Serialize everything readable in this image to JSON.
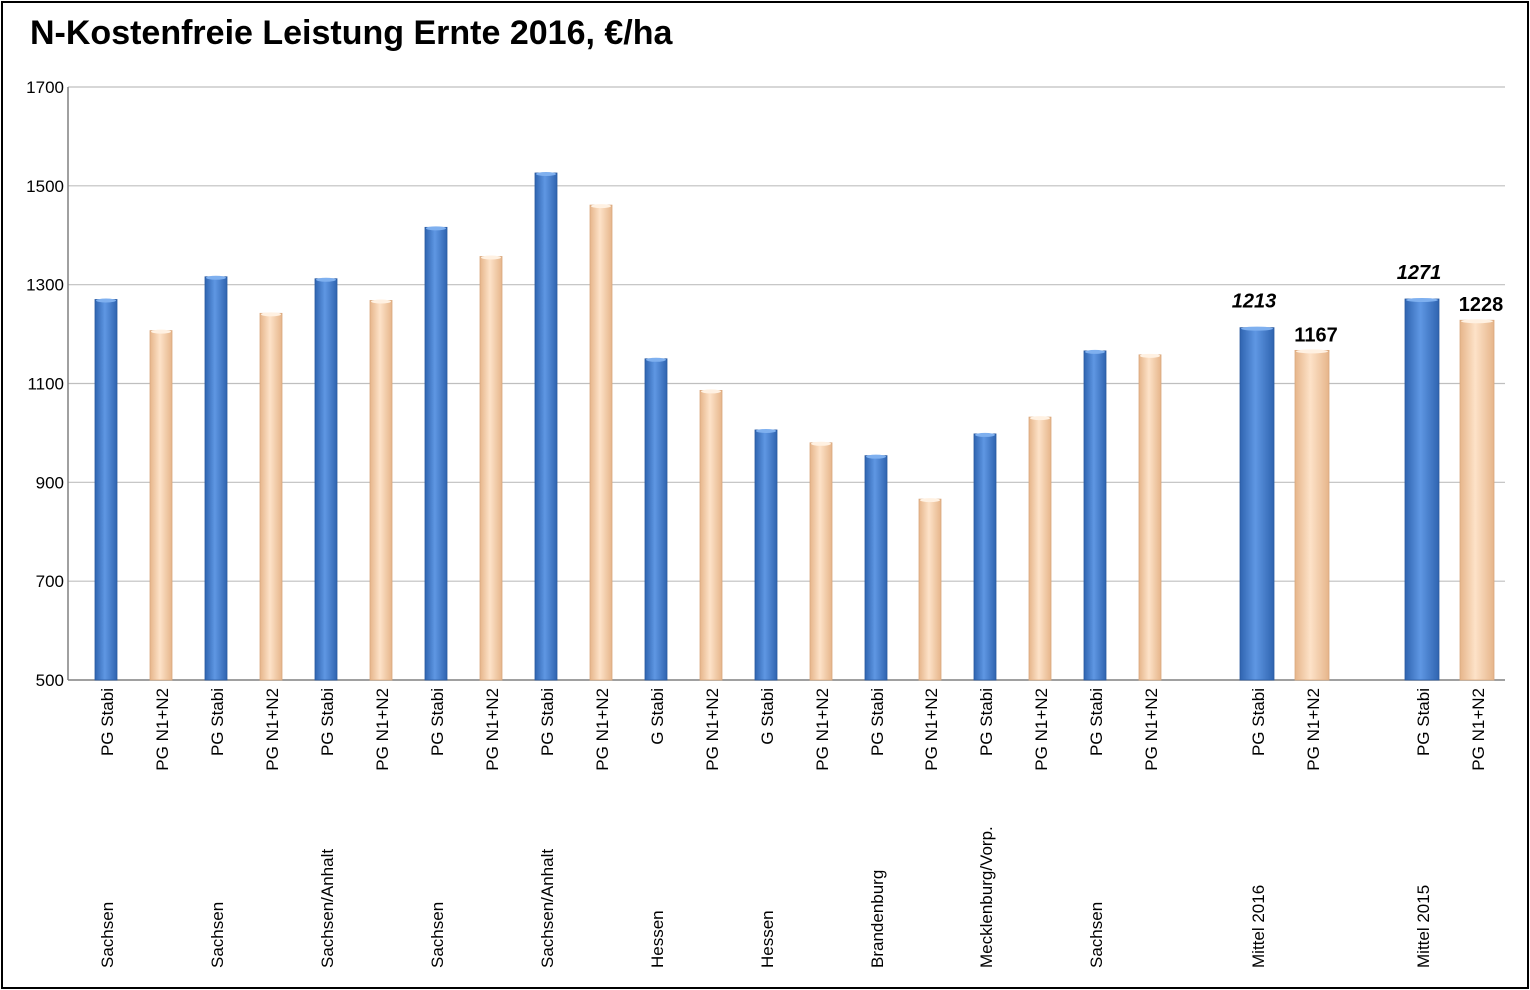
{
  "title": "N-Kostenfreie Leistung Ernte 2016, €/ha",
  "colors": {
    "stabi": "#4a84d6",
    "n1n2": "#f7d1ae",
    "grid": "#bfbfbf"
  },
  "chart_data": {
    "type": "bar",
    "title": "N-Kostenfreie Leistung Ernte 2016, €/ha",
    "ylim": [
      500,
      1700
    ],
    "yticks": [
      500,
      700,
      900,
      1100,
      1300,
      1500,
      1700
    ],
    "grid": true,
    "bars": [
      {
        "label": "PG Stabi",
        "group": "Sachsen",
        "value": 1270,
        "kind": "stabi"
      },
      {
        "label": "PG N1+N2",
        "group": "",
        "value": 1207,
        "kind": "n1n2"
      },
      {
        "label": "PG Stabi",
        "group": "Sachsen",
        "value": 1316,
        "kind": "stabi"
      },
      {
        "label": "PG N1+N2",
        "group": "",
        "value": 1242,
        "kind": "n1n2"
      },
      {
        "label": "PG Stabi",
        "group": "Sachsen/Anhalt",
        "value": 1312,
        "kind": "stabi"
      },
      {
        "label": "PG N1+N2",
        "group": "",
        "value": 1268,
        "kind": "n1n2"
      },
      {
        "label": "PG Stabi",
        "group": "Sachsen",
        "value": 1416,
        "kind": "stabi"
      },
      {
        "label": "PG N1+N2",
        "group": "",
        "value": 1357,
        "kind": "n1n2"
      },
      {
        "label": "PG Stabi",
        "group": "Sachsen/Anhalt",
        "value": 1526,
        "kind": "stabi"
      },
      {
        "label": "PG N1+N2",
        "group": "",
        "value": 1461,
        "kind": "n1n2"
      },
      {
        "label": "G Stabi",
        "group": "Hessen",
        "value": 1150,
        "kind": "stabi"
      },
      {
        "label": "PG N1+N2",
        "group": "",
        "value": 1086,
        "kind": "n1n2"
      },
      {
        "label": "G Stabi",
        "group": "Hessen",
        "value": 1006,
        "kind": "stabi"
      },
      {
        "label": "PG N1+N2",
        "group": "",
        "value": 980,
        "kind": "n1n2"
      },
      {
        "label": "PG Stabi",
        "group": "Brandenburg",
        "value": 954,
        "kind": "stabi"
      },
      {
        "label": "PG N1+N2",
        "group": "",
        "value": 866,
        "kind": "n1n2"
      },
      {
        "label": "PG Stabi",
        "group": "Mecklenburg/Vorp.",
        "value": 998,
        "kind": "stabi"
      },
      {
        "label": "PG N1+N2",
        "group": "",
        "value": 1032,
        "kind": "n1n2"
      },
      {
        "label": "PG Stabi",
        "group": "Sachsen",
        "value": 1166,
        "kind": "stabi"
      },
      {
        "label": "PG N1+N2",
        "group": "",
        "value": 1158,
        "kind": "n1n2"
      },
      {
        "label": "PG Stabi",
        "group": "Mittel 2016",
        "value": 1213,
        "kind": "stabi",
        "data_label": "1213",
        "italic": true
      },
      {
        "label": "PG N1+N2",
        "group": "",
        "value": 1167,
        "kind": "n1n2",
        "data_label": "1167"
      },
      {
        "label": "PG Stabi",
        "group": "Mittel 2015",
        "value": 1271,
        "kind": "stabi",
        "data_label": "1271",
        "italic": true
      },
      {
        "label": "PG N1+N2",
        "group": "",
        "value": 1228,
        "kind": "n1n2",
        "data_label": "1228"
      }
    ]
  }
}
